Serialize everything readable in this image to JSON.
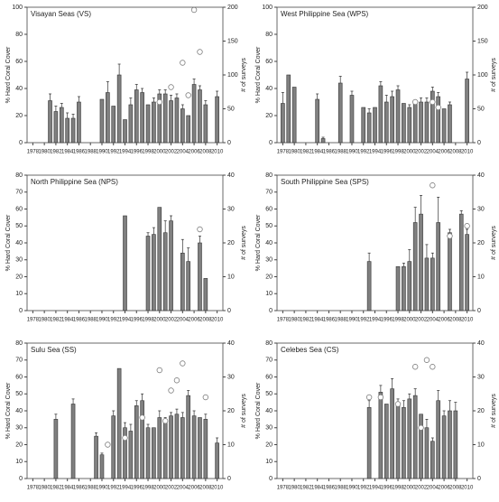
{
  "chart_data": [
    {
      "type": "bar",
      "title": "Visayan Seas (VS)",
      "y_label": "% Hard Coral Cover",
      "y2_label": "# of surveys",
      "x": [
        1978,
        1979,
        1980,
        1981,
        1982,
        1983,
        1984,
        1985,
        1986,
        1987,
        1988,
        1989,
        1990,
        1991,
        1992,
        1993,
        1994,
        1995,
        1996,
        1997,
        1998,
        1999,
        2000,
        2001,
        2002,
        2003,
        2004,
        2005,
        2006,
        2007,
        2008,
        2009,
        2010
      ],
      "xlim": [
        1977,
        2011
      ],
      "xticks": [
        1978,
        1980,
        1982,
        1984,
        1986,
        1988,
        1990,
        1992,
        1994,
        1996,
        1998,
        2000,
        2002,
        2004,
        2006,
        2008,
        2010
      ],
      "ylim": [
        0,
        100
      ],
      "yticks": [
        0,
        20,
        40,
        60,
        80,
        100
      ],
      "y2lim": [
        0,
        200
      ],
      "y2ticks": [
        0,
        50,
        100,
        150,
        200
      ],
      "series": [
        {
          "color": "#808080",
          "values": [
            null,
            null,
            null,
            31,
            23,
            26,
            18,
            18,
            30,
            null,
            null,
            null,
            32,
            37,
            27,
            50,
            17,
            28,
            39,
            37,
            28,
            30,
            36,
            36,
            31,
            33,
            25,
            20,
            43,
            39,
            28,
            null,
            34
          ],
          "errors": [
            null,
            null,
            null,
            5,
            4,
            3,
            4,
            3,
            4,
            null,
            null,
            null,
            null,
            8,
            null,
            8,
            null,
            5,
            4,
            3,
            null,
            3,
            3,
            3,
            4,
            3,
            3,
            null,
            4,
            3,
            3,
            null,
            4
          ]
        },
        {
          "type": "scatter",
          "axis": "y2",
          "color": "#808080",
          "values": [
            null,
            null,
            null,
            null,
            null,
            null,
            null,
            null,
            null,
            null,
            null,
            null,
            null,
            null,
            null,
            null,
            null,
            null,
            null,
            null,
            null,
            null,
            60,
            null,
            82,
            null,
            118,
            70,
            196,
            134,
            null,
            null,
            null
          ]
        }
      ]
    },
    {
      "type": "bar",
      "title": "West Philippine Sea (WPS)",
      "y_label": "% Hard Coral Cover",
      "y2_label": "# of surveys",
      "x": [
        1978,
        1979,
        1980,
        1981,
        1982,
        1983,
        1984,
        1985,
        1986,
        1987,
        1988,
        1989,
        1990,
        1991,
        1992,
        1993,
        1994,
        1995,
        1996,
        1997,
        1998,
        1999,
        2000,
        2001,
        2002,
        2003,
        2004,
        2005,
        2006,
        2007,
        2008,
        2009,
        2010
      ],
      "xlim": [
        1977,
        2011
      ],
      "xticks": [
        1978,
        1980,
        1982,
        1984,
        1986,
        1988,
        1990,
        1992,
        1994,
        1996,
        1998,
        2000,
        2002,
        2004,
        2006,
        2008,
        2010
      ],
      "ylim": [
        0,
        100
      ],
      "yticks": [
        0,
        20,
        40,
        60,
        80,
        100
      ],
      "y2lim": [
        0,
        200
      ],
      "y2ticks": [
        0,
        50,
        100,
        150,
        200
      ],
      "series": [
        {
          "color": "#808080",
          "values": [
            29,
            50,
            41,
            null,
            null,
            null,
            32,
            3,
            null,
            null,
            44,
            null,
            35,
            null,
            26,
            22,
            26,
            42,
            30,
            34,
            39,
            29,
            26,
            30,
            30,
            30,
            38,
            34,
            25,
            28,
            null,
            null,
            47
          ],
          "errors": [
            8,
            null,
            null,
            null,
            null,
            null,
            4,
            1,
            null,
            null,
            5,
            null,
            3,
            null,
            null,
            3,
            null,
            3,
            5,
            4,
            3,
            null,
            2,
            null,
            3,
            3,
            3,
            3,
            null,
            2,
            null,
            null,
            5
          ]
        },
        {
          "type": "scatter",
          "axis": "y2",
          "color": "#808080",
          "values": [
            null,
            null,
            null,
            null,
            null,
            null,
            null,
            null,
            null,
            null,
            null,
            null,
            null,
            null,
            null,
            null,
            null,
            null,
            null,
            null,
            null,
            null,
            null,
            60,
            null,
            null,
            60,
            52,
            null,
            null,
            null,
            null,
            null
          ]
        }
      ]
    },
    {
      "type": "bar",
      "title": "North Philippine Sea (NPS)",
      "y_label": "% Hard Coral Cover",
      "y2_label": "# of surveys",
      "x": [
        1978,
        1979,
        1980,
        1981,
        1982,
        1983,
        1984,
        1985,
        1986,
        1987,
        1988,
        1989,
        1990,
        1991,
        1992,
        1993,
        1994,
        1995,
        1996,
        1997,
        1998,
        1999,
        2000,
        2001,
        2002,
        2003,
        2004,
        2005,
        2006,
        2007,
        2008,
        2009,
        2010
      ],
      "xlim": [
        1977,
        2011
      ],
      "xticks": [
        1978,
        1980,
        1982,
        1984,
        1986,
        1988,
        1990,
        1992,
        1994,
        1996,
        1998,
        2000,
        2002,
        2004,
        2006,
        2008,
        2010
      ],
      "ylim": [
        0,
        80
      ],
      "yticks": [
        0,
        10,
        20,
        30,
        40,
        50,
        60,
        70,
        80
      ],
      "y2lim": [
        0,
        40
      ],
      "y2ticks": [
        0,
        10,
        20,
        30,
        40
      ],
      "series": [
        {
          "color": "#808080",
          "values": [
            null,
            null,
            null,
            null,
            null,
            null,
            null,
            null,
            null,
            null,
            null,
            null,
            null,
            null,
            null,
            null,
            56,
            null,
            null,
            null,
            44,
            45,
            61,
            46,
            53,
            null,
            34,
            29,
            null,
            40,
            19,
            null,
            null
          ],
          "errors": [
            null,
            null,
            null,
            null,
            null,
            null,
            null,
            null,
            null,
            null,
            null,
            null,
            null,
            null,
            null,
            null,
            null,
            null,
            null,
            null,
            2,
            4,
            null,
            7,
            3,
            null,
            8,
            8,
            null,
            4,
            null,
            null,
            null
          ]
        },
        {
          "type": "scatter",
          "axis": "y2",
          "color": "#808080",
          "values": [
            null,
            null,
            null,
            null,
            null,
            null,
            null,
            null,
            null,
            null,
            null,
            null,
            null,
            null,
            null,
            null,
            null,
            null,
            null,
            null,
            null,
            null,
            null,
            null,
            null,
            null,
            null,
            null,
            null,
            24,
            null,
            null,
            null
          ]
        }
      ]
    },
    {
      "type": "bar",
      "title": "South Philippine Sea (SPS)",
      "y_label": "% Hard Coral Cover",
      "y2_label": "# of surveys",
      "x": [
        1978,
        1979,
        1980,
        1981,
        1982,
        1983,
        1984,
        1985,
        1986,
        1987,
        1988,
        1989,
        1990,
        1991,
        1992,
        1993,
        1994,
        1995,
        1996,
        1997,
        1998,
        1999,
        2000,
        2001,
        2002,
        2003,
        2004,
        2005,
        2006,
        2007,
        2008,
        2009,
        2010
      ],
      "xlim": [
        1977,
        2011
      ],
      "xticks": [
        1978,
        1980,
        1982,
        1984,
        1986,
        1988,
        1990,
        1992,
        1994,
        1996,
        1998,
        2000,
        2002,
        2004,
        2006,
        2008,
        2010
      ],
      "ylim": [
        0,
        80
      ],
      "yticks": [
        0,
        10,
        20,
        30,
        40,
        50,
        60,
        70,
        80
      ],
      "y2lim": [
        0,
        40
      ],
      "y2ticks": [
        0,
        10,
        20,
        30,
        40
      ],
      "series": [
        {
          "color": "#808080",
          "values": [
            null,
            null,
            null,
            null,
            null,
            null,
            null,
            null,
            null,
            null,
            null,
            null,
            null,
            null,
            null,
            29,
            null,
            null,
            null,
            null,
            26,
            26,
            29,
            52,
            57,
            31,
            31,
            52,
            null,
            46,
            null,
            57,
            45
          ],
          "errors": [
            null,
            null,
            null,
            null,
            null,
            null,
            null,
            null,
            null,
            null,
            null,
            null,
            null,
            null,
            null,
            5,
            null,
            null,
            null,
            null,
            null,
            2,
            7,
            9,
            11,
            8,
            3,
            15,
            null,
            2,
            null,
            2,
            3
          ]
        },
        {
          "type": "scatter",
          "axis": "y2",
          "color": "#808080",
          "values": [
            null,
            null,
            null,
            null,
            null,
            null,
            null,
            null,
            null,
            null,
            null,
            null,
            null,
            null,
            null,
            null,
            null,
            null,
            null,
            null,
            null,
            null,
            null,
            null,
            null,
            null,
            37,
            null,
            null,
            22,
            null,
            null,
            25
          ]
        }
      ]
    },
    {
      "type": "bar",
      "title": "Sulu Sea (SS)",
      "y_label": "% Hard Coral Cover",
      "y2_label": "# of surveys",
      "x": [
        1978,
        1979,
        1980,
        1981,
        1982,
        1983,
        1984,
        1985,
        1986,
        1987,
        1988,
        1989,
        1990,
        1991,
        1992,
        1993,
        1994,
        1995,
        1996,
        1997,
        1998,
        1999,
        2000,
        2001,
        2002,
        2003,
        2004,
        2005,
        2006,
        2007,
        2008,
        2009,
        2010
      ],
      "xlim": [
        1977,
        2011
      ],
      "xticks": [
        1978,
        1980,
        1982,
        1984,
        1986,
        1988,
        1990,
        1992,
        1994,
        1996,
        1998,
        2000,
        2002,
        2004,
        2006,
        2008,
        2010
      ],
      "ylim": [
        0,
        80
      ],
      "yticks": [
        0,
        10,
        20,
        30,
        40,
        50,
        60,
        70,
        80
      ],
      "y2lim": [
        0,
        40
      ],
      "y2ticks": [
        0,
        10,
        20,
        30,
        40
      ],
      "series": [
        {
          "color": "#808080",
          "values": [
            null,
            null,
            null,
            null,
            35,
            null,
            null,
            44,
            null,
            null,
            null,
            25,
            14,
            null,
            37,
            65,
            30,
            28,
            43,
            46,
            30,
            30,
            36,
            34,
            37,
            38,
            36,
            49,
            37,
            36,
            35,
            null,
            21
          ],
          "errors": [
            null,
            null,
            null,
            null,
            3,
            null,
            null,
            3,
            null,
            null,
            null,
            2,
            1,
            null,
            3,
            null,
            3,
            4,
            3,
            4,
            2,
            null,
            4,
            2,
            2,
            3,
            3,
            3,
            3,
            null,
            3,
            null,
            3
          ]
        },
        {
          "type": "scatter",
          "axis": "y2",
          "color": "#808080",
          "values": [
            null,
            null,
            null,
            null,
            null,
            null,
            null,
            null,
            null,
            null,
            null,
            null,
            null,
            10,
            null,
            null,
            12,
            null,
            null,
            18,
            null,
            null,
            32,
            17,
            26,
            29,
            34,
            null,
            null,
            null,
            24,
            null,
            null
          ]
        }
      ]
    },
    {
      "type": "bar",
      "title": "Celebes Sea (CS)",
      "y_label": "% Hard Coral Cover",
      "y2_label": "# of surveys",
      "x": [
        1978,
        1979,
        1980,
        1981,
        1982,
        1983,
        1984,
        1985,
        1986,
        1987,
        1988,
        1989,
        1990,
        1991,
        1992,
        1993,
        1994,
        1995,
        1996,
        1997,
        1998,
        1999,
        2000,
        2001,
        2002,
        2003,
        2004,
        2005,
        2006,
        2007,
        2008,
        2009,
        2010
      ],
      "xlim": [
        1977,
        2011
      ],
      "xticks": [
        1978,
        1980,
        1982,
        1984,
        1986,
        1988,
        1990,
        1992,
        1994,
        1996,
        1998,
        2000,
        2002,
        2004,
        2006,
        2008,
        2010
      ],
      "ylim": [
        0,
        80
      ],
      "yticks": [
        0,
        10,
        20,
        30,
        40,
        50,
        60,
        70,
        80
      ],
      "y2lim": [
        0,
        40
      ],
      "y2ticks": [
        0,
        10,
        20,
        30,
        40
      ],
      "series": [
        {
          "color": "#808080",
          "values": [
            null,
            null,
            null,
            null,
            null,
            null,
            null,
            null,
            null,
            null,
            null,
            null,
            null,
            null,
            null,
            42,
            null,
            51,
            44,
            53,
            43,
            42,
            47,
            49,
            38,
            30,
            22,
            46,
            37,
            40,
            40,
            null,
            null
          ],
          "errors": [
            null,
            null,
            null,
            null,
            null,
            null,
            null,
            null,
            null,
            null,
            null,
            null,
            null,
            null,
            null,
            4,
            null,
            4,
            null,
            6,
            4,
            4,
            3,
            4,
            null,
            5,
            2,
            6,
            3,
            6,
            5,
            null,
            null
          ]
        },
        {
          "type": "scatter",
          "axis": "y2",
          "color": "#808080",
          "values": [
            null,
            null,
            null,
            null,
            null,
            null,
            null,
            null,
            null,
            null,
            null,
            null,
            null,
            null,
            null,
            24,
            null,
            24,
            null,
            null,
            22,
            null,
            null,
            33,
            15,
            35,
            33,
            null,
            null,
            null,
            null,
            null,
            null
          ]
        }
      ]
    }
  ]
}
